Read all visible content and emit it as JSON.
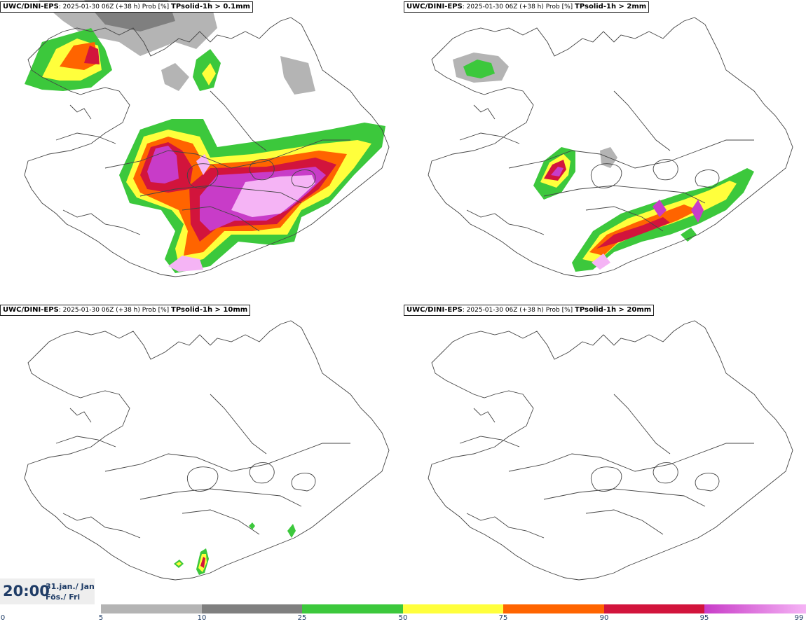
{
  "panels": [
    {
      "model": "UWC/DINI-EPS",
      "run": ": 2025-01-30 06Z (+38 h) Prob [%] ",
      "field": "TPsolid-1h > 0.1mm"
    },
    {
      "model": "UWC/DINI-EPS",
      "run": ": 2025-01-30 06Z (+38 h) Prob [%] ",
      "field": "TPsolid-1h > 2mm"
    },
    {
      "model": "UWC/DINI-EPS",
      "run": ": 2025-01-30 06Z (+38 h) Prob [%] ",
      "field": "TPsolid-1h > 10mm"
    },
    {
      "model": "UWC/DINI-EPS",
      "run": ": 2025-01-30 06Z (+38 h) Prob [%] ",
      "field": "TPsolid-1h > 20mm"
    }
  ],
  "valid_time": {
    "time": "20:00",
    "date_line1": "31.jan./ Jan",
    "date_line2": "Fös./ Fri"
  },
  "legend": {
    "ticks": [
      "0",
      "5",
      "10",
      "25",
      "50",
      "75",
      "90",
      "95",
      "99"
    ],
    "bins": [
      {
        "from": 5,
        "to": 10,
        "color": "#b4b4b4"
      },
      {
        "from": 10,
        "to": 25,
        "color": "#7f7f7f"
      },
      {
        "from": 25,
        "to": 50,
        "color": "#3cc83c"
      },
      {
        "from": 50,
        "to": 75,
        "color": "#ffff3c"
      },
      {
        "from": 75,
        "to": 90,
        "color": "#ff6400"
      },
      {
        "from": 90,
        "to": 95,
        "color": "#d2143c"
      },
      {
        "from": 95,
        "to": 99,
        "color": "#c83cc8",
        "color_end": "#f5b4f5"
      }
    ]
  }
}
